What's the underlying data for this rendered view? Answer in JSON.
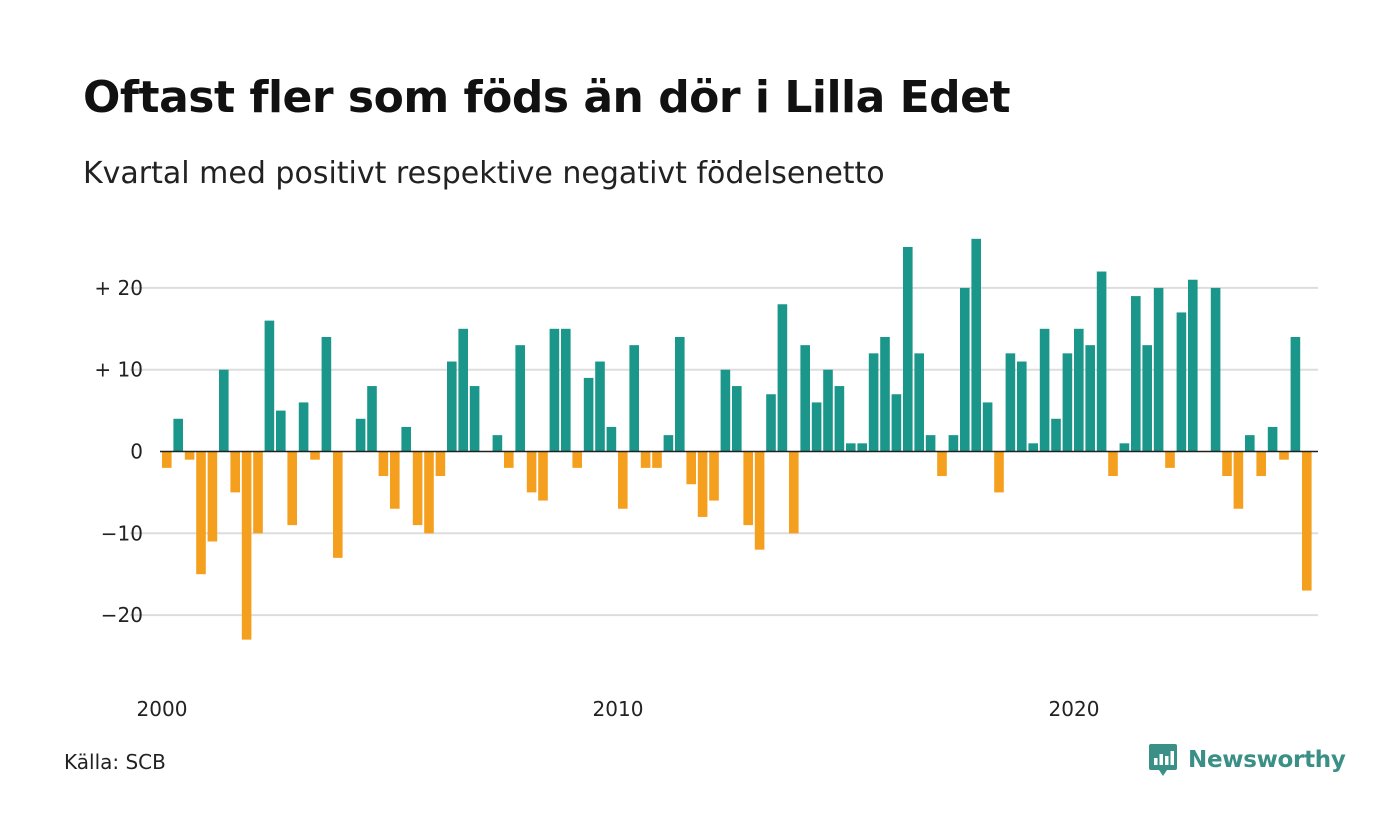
{
  "title": "Oftast fler som föds än dör i Lilla Edet",
  "subtitle": "Kvartal med positivt respektive negativt födelsenetto",
  "source": "Källa: SCB",
  "brand": {
    "name": "Newsworthy",
    "icon": "newsworthy-logo-icon"
  },
  "colors": {
    "positive": "#1b968a",
    "negative": "#f59f1e",
    "grid": "#dddddd",
    "zero": "#222222"
  },
  "chart_data": {
    "type": "bar",
    "title": "Oftast fler som föds än dör i Lilla Edet",
    "subtitle": "Kvartal med positivt respektive negativt födelsenetto",
    "xlabel": "",
    "ylabel": "",
    "start_year": 2000,
    "periods_per_year": 4,
    "ylim": [
      -26,
      26
    ],
    "grid": true,
    "y_ticks": [
      {
        "value": 20,
        "label": "+ 20"
      },
      {
        "value": 10,
        "label": "+ 10"
      },
      {
        "value": 0,
        "label": "0"
      },
      {
        "value": -10,
        "label": "−10"
      },
      {
        "value": -20,
        "label": "−20"
      }
    ],
    "x_ticks": [
      {
        "year": 2000,
        "label": "2000"
      },
      {
        "year": 2010,
        "label": "2010"
      },
      {
        "year": 2020,
        "label": "2020"
      }
    ],
    "values": [
      -2,
      4,
      -1,
      -15,
      -11,
      10,
      -5,
      -23,
      -10,
      16,
      5,
      -9,
      6,
      -1,
      14,
      -13,
      0,
      4,
      8,
      -3,
      -7,
      3,
      -9,
      -10,
      -3,
      11,
      15,
      8,
      0,
      2,
      -2,
      13,
      -5,
      -6,
      15,
      15,
      -2,
      9,
      11,
      3,
      -7,
      13,
      -2,
      -2,
      2,
      14,
      -4,
      -8,
      -6,
      10,
      8,
      -9,
      -12,
      7,
      18,
      -10,
      13,
      6,
      10,
      8,
      1,
      1,
      12,
      14,
      7,
      25,
      12,
      2,
      -3,
      2,
      20,
      26,
      6,
      -5,
      12,
      11,
      1,
      15,
      4,
      12,
      15,
      13,
      22,
      -3,
      1,
      19,
      13,
      20,
      -2,
      17,
      21,
      0,
      20,
      -3,
      -7,
      2,
      -3,
      3,
      -1,
      14,
      -17
    ]
  }
}
